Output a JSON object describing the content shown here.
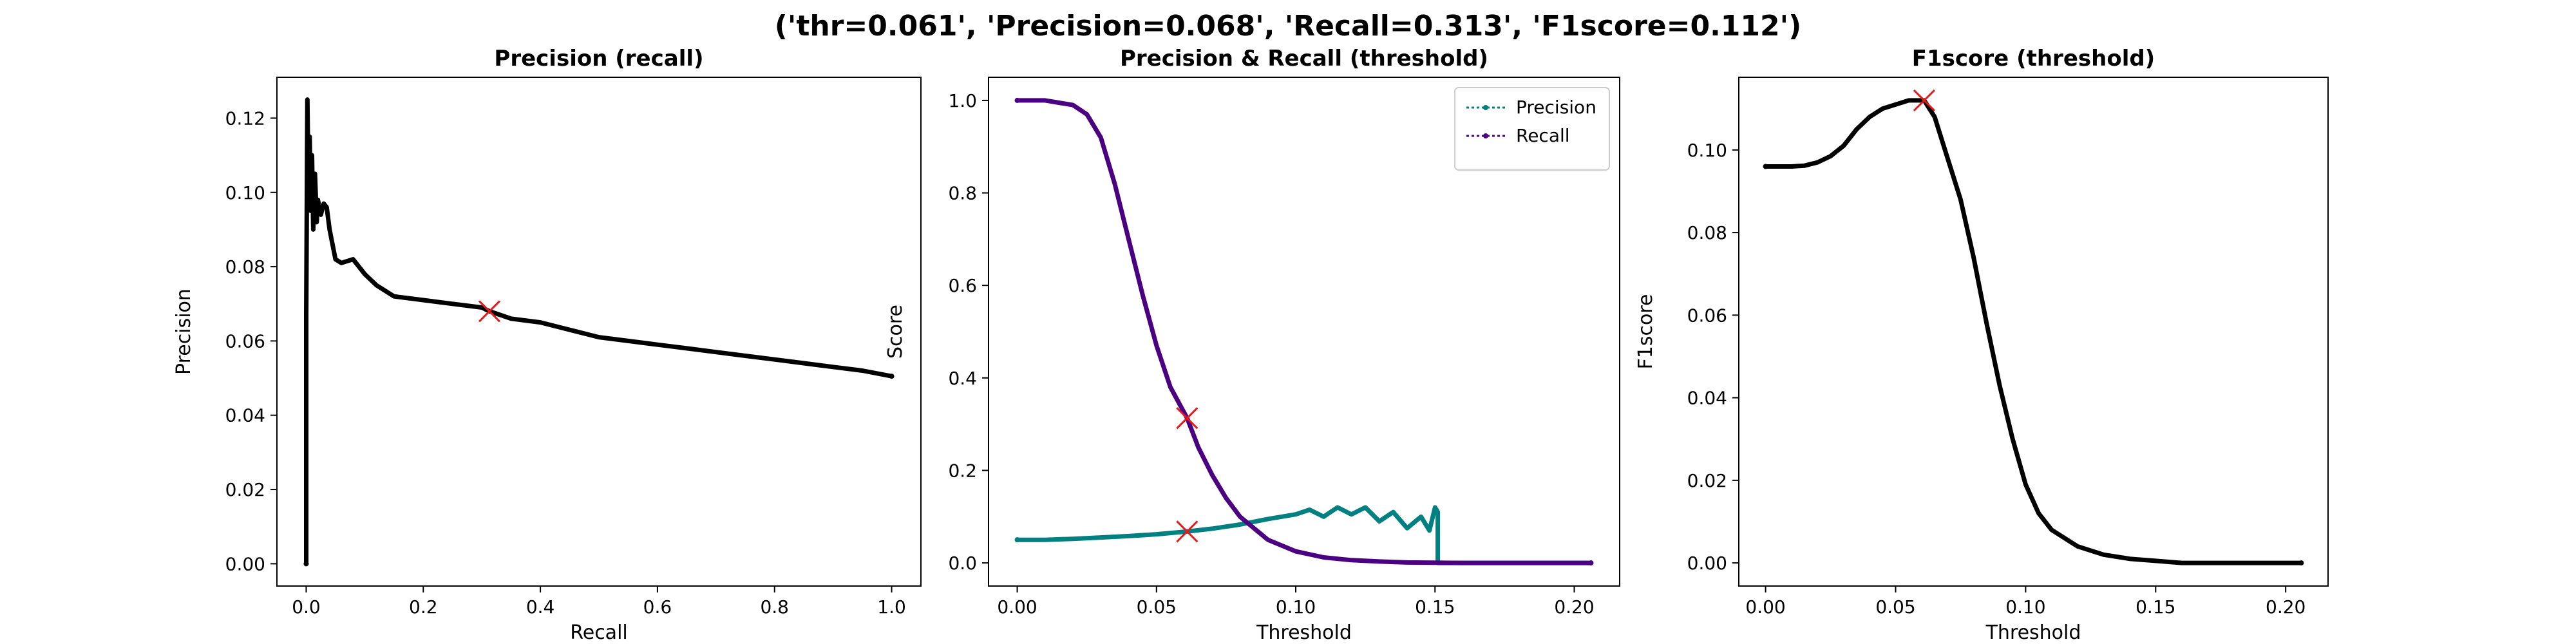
{
  "figure": {
    "suptitle": "('thr=0.061', 'Precision=0.068', 'Recall=0.313', 'F1score=0.112')"
  },
  "colors": {
    "black": "#000000",
    "teal": "#008080",
    "indigo": "#4b0082",
    "marker": "#e41a1c"
  },
  "chart_data": [
    {
      "type": "line",
      "title": "Precision (recall)",
      "xlabel": "Recall",
      "ylabel": "Precision",
      "xlim": [
        -0.05,
        1.05
      ],
      "ylim": [
        -0.006,
        0.131
      ],
      "xticks": [
        0.0,
        0.2,
        0.4,
        0.6,
        0.8,
        1.0
      ],
      "xtick_labels": [
        "0.0",
        "0.2",
        "0.4",
        "0.6",
        "0.8",
        "1.0"
      ],
      "yticks": [
        0.0,
        0.02,
        0.04,
        0.06,
        0.08,
        0.1,
        0.12
      ],
      "ytick_labels": [
        "0.00",
        "0.02",
        "0.04",
        "0.06",
        "0.08",
        "0.10",
        "0.12"
      ],
      "grid": false,
      "series": [
        {
          "color": "#000000",
          "x": [
            0.0,
            0.0,
            0.002,
            0.004,
            0.006,
            0.008,
            0.01,
            0.012,
            0.015,
            0.018,
            0.02,
            0.025,
            0.03,
            0.035,
            0.04,
            0.05,
            0.06,
            0.08,
            0.1,
            0.12,
            0.15,
            0.2,
            0.25,
            0.3,
            0.313,
            0.35,
            0.4,
            0.45,
            0.5,
            0.55,
            0.6,
            0.65,
            0.7,
            0.75,
            0.8,
            0.85,
            0.9,
            0.95,
            1.0
          ],
          "y": [
            0.0,
            0.067,
            0.125,
            0.1,
            0.115,
            0.095,
            0.11,
            0.09,
            0.105,
            0.092,
            0.098,
            0.094,
            0.097,
            0.096,
            0.09,
            0.082,
            0.081,
            0.082,
            0.078,
            0.075,
            0.072,
            0.071,
            0.07,
            0.069,
            0.068,
            0.066,
            0.065,
            0.063,
            0.061,
            0.06,
            0.059,
            0.058,
            0.057,
            0.056,
            0.055,
            0.054,
            0.053,
            0.052,
            0.0505
          ]
        }
      ],
      "highlight": {
        "x": 0.313,
        "y": 0.068
      }
    },
    {
      "type": "line",
      "title": "Precision & Recall (threshold)",
      "xlabel": "Threshold",
      "ylabel": "Score",
      "xlim": [
        -0.0103,
        0.2163
      ],
      "ylim": [
        -0.05,
        1.05
      ],
      "xticks": [
        0.0,
        0.05,
        0.1,
        0.15,
        0.2
      ],
      "xtick_labels": [
        "0.00",
        "0.05",
        "0.10",
        "0.15",
        "0.20"
      ],
      "yticks": [
        0.0,
        0.2,
        0.4,
        0.6,
        0.8,
        1.0
      ],
      "ytick_labels": [
        "0.0",
        "0.2",
        "0.4",
        "0.6",
        "0.8",
        "1.0"
      ],
      "grid": false,
      "legend": "top-right",
      "series": [
        {
          "name": "Precision",
          "color": "#008080",
          "x": [
            0.0,
            0.01,
            0.02,
            0.03,
            0.04,
            0.05,
            0.061,
            0.07,
            0.08,
            0.09,
            0.095,
            0.1,
            0.105,
            0.11,
            0.115,
            0.12,
            0.125,
            0.13,
            0.135,
            0.14,
            0.145,
            0.148,
            0.15,
            0.151,
            0.151,
            0.16,
            0.18,
            0.206
          ],
          "y": [
            0.05,
            0.05,
            0.052,
            0.055,
            0.058,
            0.062,
            0.068,
            0.074,
            0.083,
            0.095,
            0.1,
            0.105,
            0.115,
            0.1,
            0.12,
            0.105,
            0.12,
            0.09,
            0.11,
            0.075,
            0.1,
            0.07,
            0.12,
            0.11,
            0.0,
            0.0,
            0.0,
            0.0
          ]
        },
        {
          "name": "Recall",
          "color": "#4b0082",
          "x": [
            0.0,
            0.01,
            0.015,
            0.02,
            0.025,
            0.03,
            0.035,
            0.04,
            0.045,
            0.05,
            0.055,
            0.061,
            0.065,
            0.07,
            0.075,
            0.08,
            0.09,
            0.1,
            0.11,
            0.12,
            0.13,
            0.14,
            0.16,
            0.18,
            0.206
          ],
          "y": [
            1.0,
            1.0,
            0.995,
            0.99,
            0.97,
            0.92,
            0.82,
            0.7,
            0.58,
            0.47,
            0.38,
            0.313,
            0.25,
            0.19,
            0.14,
            0.1,
            0.05,
            0.025,
            0.012,
            0.006,
            0.003,
            0.001,
            0.0,
            0.0,
            0.0
          ]
        }
      ],
      "highlights": [
        {
          "x": 0.061,
          "y": 0.313
        },
        {
          "x": 0.061,
          "y": 0.068
        }
      ]
    },
    {
      "type": "line",
      "title": "F1score (threshold)",
      "xlabel": "Threshold",
      "ylabel": "F1score",
      "xlim": [
        -0.0103,
        0.2163
      ],
      "ylim": [
        -0.0056,
        0.1176
      ],
      "xticks": [
        0.0,
        0.05,
        0.1,
        0.15,
        0.2
      ],
      "xtick_labels": [
        "0.00",
        "0.05",
        "0.10",
        "0.15",
        "0.20"
      ],
      "yticks": [
        0.0,
        0.02,
        0.04,
        0.06,
        0.08,
        0.1
      ],
      "ytick_labels": [
        "0.00",
        "0.02",
        "0.04",
        "0.06",
        "0.08",
        "0.10"
      ],
      "grid": false,
      "series": [
        {
          "color": "#000000",
          "x": [
            0.0,
            0.01,
            0.015,
            0.02,
            0.025,
            0.03,
            0.035,
            0.04,
            0.045,
            0.05,
            0.055,
            0.061,
            0.065,
            0.07,
            0.075,
            0.08,
            0.085,
            0.09,
            0.095,
            0.1,
            0.105,
            0.11,
            0.12,
            0.13,
            0.14,
            0.15,
            0.16,
            0.18,
            0.206
          ],
          "y": [
            0.096,
            0.096,
            0.0962,
            0.097,
            0.0985,
            0.101,
            0.105,
            0.108,
            0.11,
            0.111,
            0.112,
            0.112,
            0.108,
            0.098,
            0.088,
            0.074,
            0.058,
            0.043,
            0.03,
            0.019,
            0.012,
            0.008,
            0.004,
            0.002,
            0.001,
            0.0005,
            0.0,
            0.0,
            0.0
          ]
        }
      ],
      "highlight": {
        "x": 0.061,
        "y": 0.112
      }
    }
  ]
}
